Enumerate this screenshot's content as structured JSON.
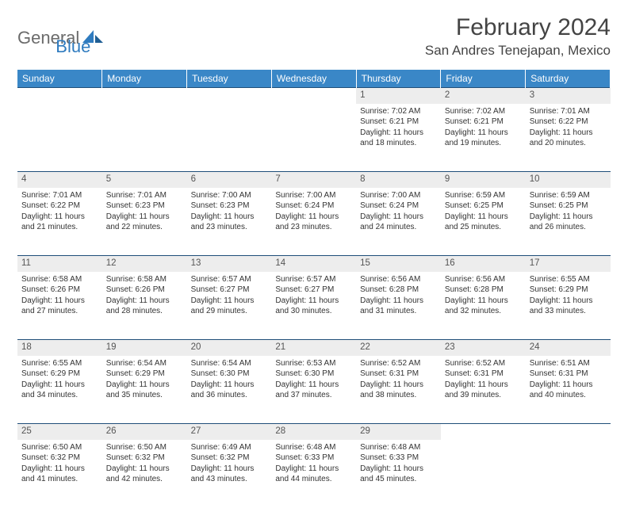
{
  "brand": {
    "part1": "General",
    "part2": "Blue"
  },
  "title": "February 2024",
  "location": "San Andres Tenejapan, Mexico",
  "colors": {
    "header_bg": "#3a87c7",
    "border": "#1f4e79",
    "daynum_bg": "#ededed",
    "text": "#333333",
    "brand_gray": "#6b6b6b",
    "brand_blue": "#2f7bbf"
  },
  "weekdays": [
    "Sunday",
    "Monday",
    "Tuesday",
    "Wednesday",
    "Thursday",
    "Friday",
    "Saturday"
  ],
  "weeks": [
    [
      null,
      null,
      null,
      null,
      {
        "n": "1",
        "sunrise": "7:02 AM",
        "sunset": "6:21 PM",
        "d1": "Daylight: 11 hours",
        "d2": "and 18 minutes."
      },
      {
        "n": "2",
        "sunrise": "7:02 AM",
        "sunset": "6:21 PM",
        "d1": "Daylight: 11 hours",
        "d2": "and 19 minutes."
      },
      {
        "n": "3",
        "sunrise": "7:01 AM",
        "sunset": "6:22 PM",
        "d1": "Daylight: 11 hours",
        "d2": "and 20 minutes."
      }
    ],
    [
      {
        "n": "4",
        "sunrise": "7:01 AM",
        "sunset": "6:22 PM",
        "d1": "Daylight: 11 hours",
        "d2": "and 21 minutes."
      },
      {
        "n": "5",
        "sunrise": "7:01 AM",
        "sunset": "6:23 PM",
        "d1": "Daylight: 11 hours",
        "d2": "and 22 minutes."
      },
      {
        "n": "6",
        "sunrise": "7:00 AM",
        "sunset": "6:23 PM",
        "d1": "Daylight: 11 hours",
        "d2": "and 23 minutes."
      },
      {
        "n": "7",
        "sunrise": "7:00 AM",
        "sunset": "6:24 PM",
        "d1": "Daylight: 11 hours",
        "d2": "and 23 minutes."
      },
      {
        "n": "8",
        "sunrise": "7:00 AM",
        "sunset": "6:24 PM",
        "d1": "Daylight: 11 hours",
        "d2": "and 24 minutes."
      },
      {
        "n": "9",
        "sunrise": "6:59 AM",
        "sunset": "6:25 PM",
        "d1": "Daylight: 11 hours",
        "d2": "and 25 minutes."
      },
      {
        "n": "10",
        "sunrise": "6:59 AM",
        "sunset": "6:25 PM",
        "d1": "Daylight: 11 hours",
        "d2": "and 26 minutes."
      }
    ],
    [
      {
        "n": "11",
        "sunrise": "6:58 AM",
        "sunset": "6:26 PM",
        "d1": "Daylight: 11 hours",
        "d2": "and 27 minutes."
      },
      {
        "n": "12",
        "sunrise": "6:58 AM",
        "sunset": "6:26 PM",
        "d1": "Daylight: 11 hours",
        "d2": "and 28 minutes."
      },
      {
        "n": "13",
        "sunrise": "6:57 AM",
        "sunset": "6:27 PM",
        "d1": "Daylight: 11 hours",
        "d2": "and 29 minutes."
      },
      {
        "n": "14",
        "sunrise": "6:57 AM",
        "sunset": "6:27 PM",
        "d1": "Daylight: 11 hours",
        "d2": "and 30 minutes."
      },
      {
        "n": "15",
        "sunrise": "6:56 AM",
        "sunset": "6:28 PM",
        "d1": "Daylight: 11 hours",
        "d2": "and 31 minutes."
      },
      {
        "n": "16",
        "sunrise": "6:56 AM",
        "sunset": "6:28 PM",
        "d1": "Daylight: 11 hours",
        "d2": "and 32 minutes."
      },
      {
        "n": "17",
        "sunrise": "6:55 AM",
        "sunset": "6:29 PM",
        "d1": "Daylight: 11 hours",
        "d2": "and 33 minutes."
      }
    ],
    [
      {
        "n": "18",
        "sunrise": "6:55 AM",
        "sunset": "6:29 PM",
        "d1": "Daylight: 11 hours",
        "d2": "and 34 minutes."
      },
      {
        "n": "19",
        "sunrise": "6:54 AM",
        "sunset": "6:29 PM",
        "d1": "Daylight: 11 hours",
        "d2": "and 35 minutes."
      },
      {
        "n": "20",
        "sunrise": "6:54 AM",
        "sunset": "6:30 PM",
        "d1": "Daylight: 11 hours",
        "d2": "and 36 minutes."
      },
      {
        "n": "21",
        "sunrise": "6:53 AM",
        "sunset": "6:30 PM",
        "d1": "Daylight: 11 hours",
        "d2": "and 37 minutes."
      },
      {
        "n": "22",
        "sunrise": "6:52 AM",
        "sunset": "6:31 PM",
        "d1": "Daylight: 11 hours",
        "d2": "and 38 minutes."
      },
      {
        "n": "23",
        "sunrise": "6:52 AM",
        "sunset": "6:31 PM",
        "d1": "Daylight: 11 hours",
        "d2": "and 39 minutes."
      },
      {
        "n": "24",
        "sunrise": "6:51 AM",
        "sunset": "6:31 PM",
        "d1": "Daylight: 11 hours",
        "d2": "and 40 minutes."
      }
    ],
    [
      {
        "n": "25",
        "sunrise": "6:50 AM",
        "sunset": "6:32 PM",
        "d1": "Daylight: 11 hours",
        "d2": "and 41 minutes."
      },
      {
        "n": "26",
        "sunrise": "6:50 AM",
        "sunset": "6:32 PM",
        "d1": "Daylight: 11 hours",
        "d2": "and 42 minutes."
      },
      {
        "n": "27",
        "sunrise": "6:49 AM",
        "sunset": "6:32 PM",
        "d1": "Daylight: 11 hours",
        "d2": "and 43 minutes."
      },
      {
        "n": "28",
        "sunrise": "6:48 AM",
        "sunset": "6:33 PM",
        "d1": "Daylight: 11 hours",
        "d2": "and 44 minutes."
      },
      {
        "n": "29",
        "sunrise": "6:48 AM",
        "sunset": "6:33 PM",
        "d1": "Daylight: 11 hours",
        "d2": "and 45 minutes."
      },
      null,
      null
    ]
  ],
  "labels": {
    "sunrise_prefix": "Sunrise: ",
    "sunset_prefix": "Sunset: "
  }
}
